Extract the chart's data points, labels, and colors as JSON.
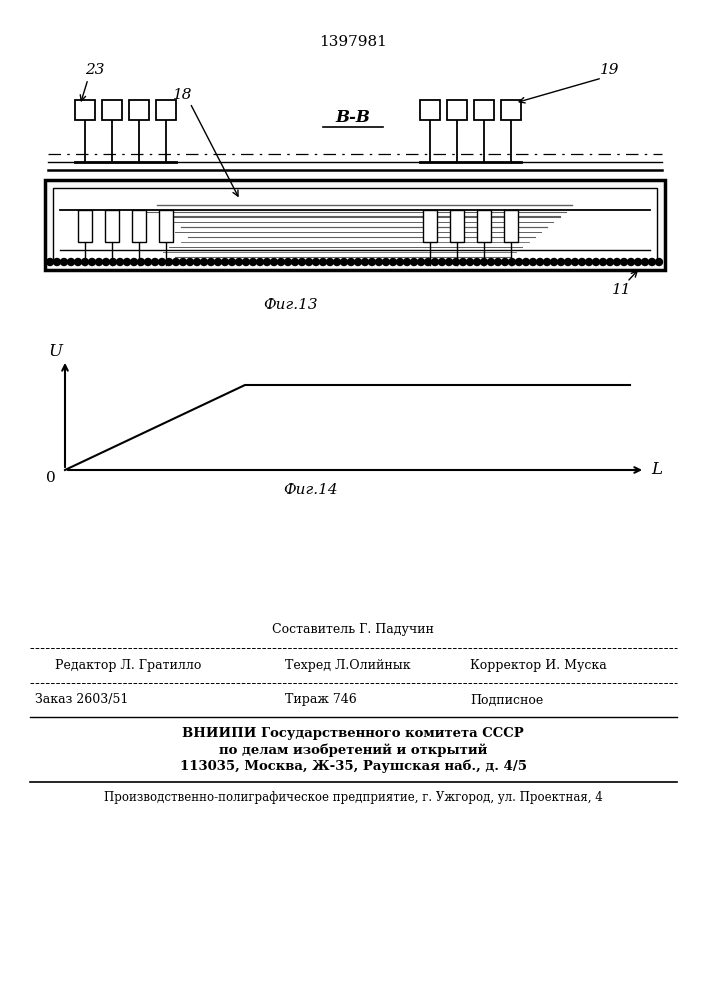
{
  "patent_number": "1397981",
  "fig13_label": "Фиг.13",
  "fig14_label": "Фиг.14",
  "section_label": "В-В",
  "background_color": "#ffffff",
  "line_color": "#000000",
  "footer": {
    "line1_label": "Составитель Г. Падучин",
    "line2_left": "Редактор Л. Гратилло",
    "line2_mid": "Техред Л.Олийнык",
    "line2_right": "Корректор И. Муска",
    "line3_left": "Заказ 2603/51",
    "line3_mid": "Тираж 746",
    "line3_right": "Подписное",
    "line4": "ВНИИПИ Государственного комитета СССР",
    "line5": "по делам изобретений и открытий",
    "line6": "113035, Москва, Ж-35, Раушская наб., д. 4/5",
    "line7": "Производственно-полиграфическое предприятие, г. Ужгород, ул. Проектная, 4"
  }
}
